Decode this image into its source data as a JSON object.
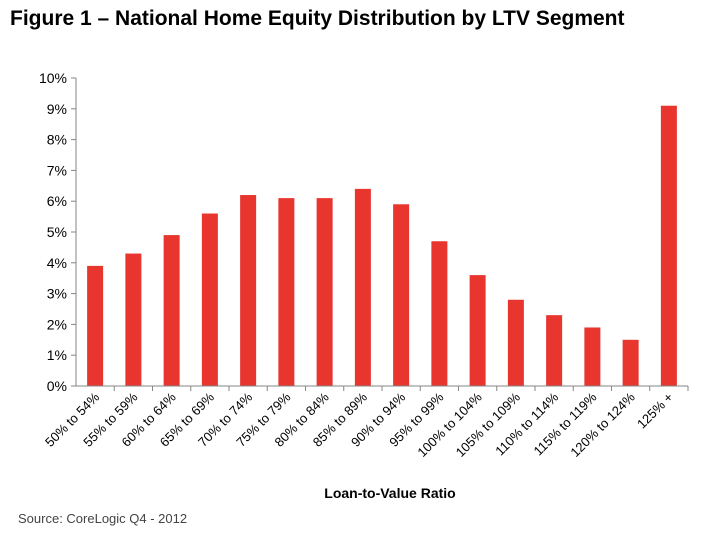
{
  "title": "Figure 1 – National Home Equity Distribution by LTV Segment",
  "source": "Source: CoreLogic Q4 - 2012",
  "chart_data": {
    "type": "bar",
    "title": "Figure 1 – National Home Equity Distribution by LTV Segment",
    "xlabel": "Loan-to-Value Ratio",
    "ylabel": "",
    "ylim": [
      0,
      10
    ],
    "yticks": [
      "0%",
      "1%",
      "2%",
      "3%",
      "4%",
      "5%",
      "6%",
      "7%",
      "8%",
      "9%",
      "10%"
    ],
    "grid": false,
    "legend": "none",
    "bar_color": "#e8352e",
    "categories": [
      "50% to 54%",
      "55% to 59%",
      "60% to 64%",
      "65% to 69%",
      "70% to 74%",
      "75% to 79%",
      "80% to 84%",
      "85% to 89%",
      "90% to 94%",
      "95% to 99%",
      "100% to 104%",
      "105% to 109%",
      "110% to 114%",
      "115% to 119%",
      "120% to 124%",
      "125% +"
    ],
    "values": [
      3.9,
      4.3,
      4.9,
      5.6,
      6.2,
      6.1,
      6.1,
      6.4,
      5.9,
      4.7,
      3.6,
      2.8,
      2.3,
      1.9,
      1.5,
      9.1
    ]
  }
}
